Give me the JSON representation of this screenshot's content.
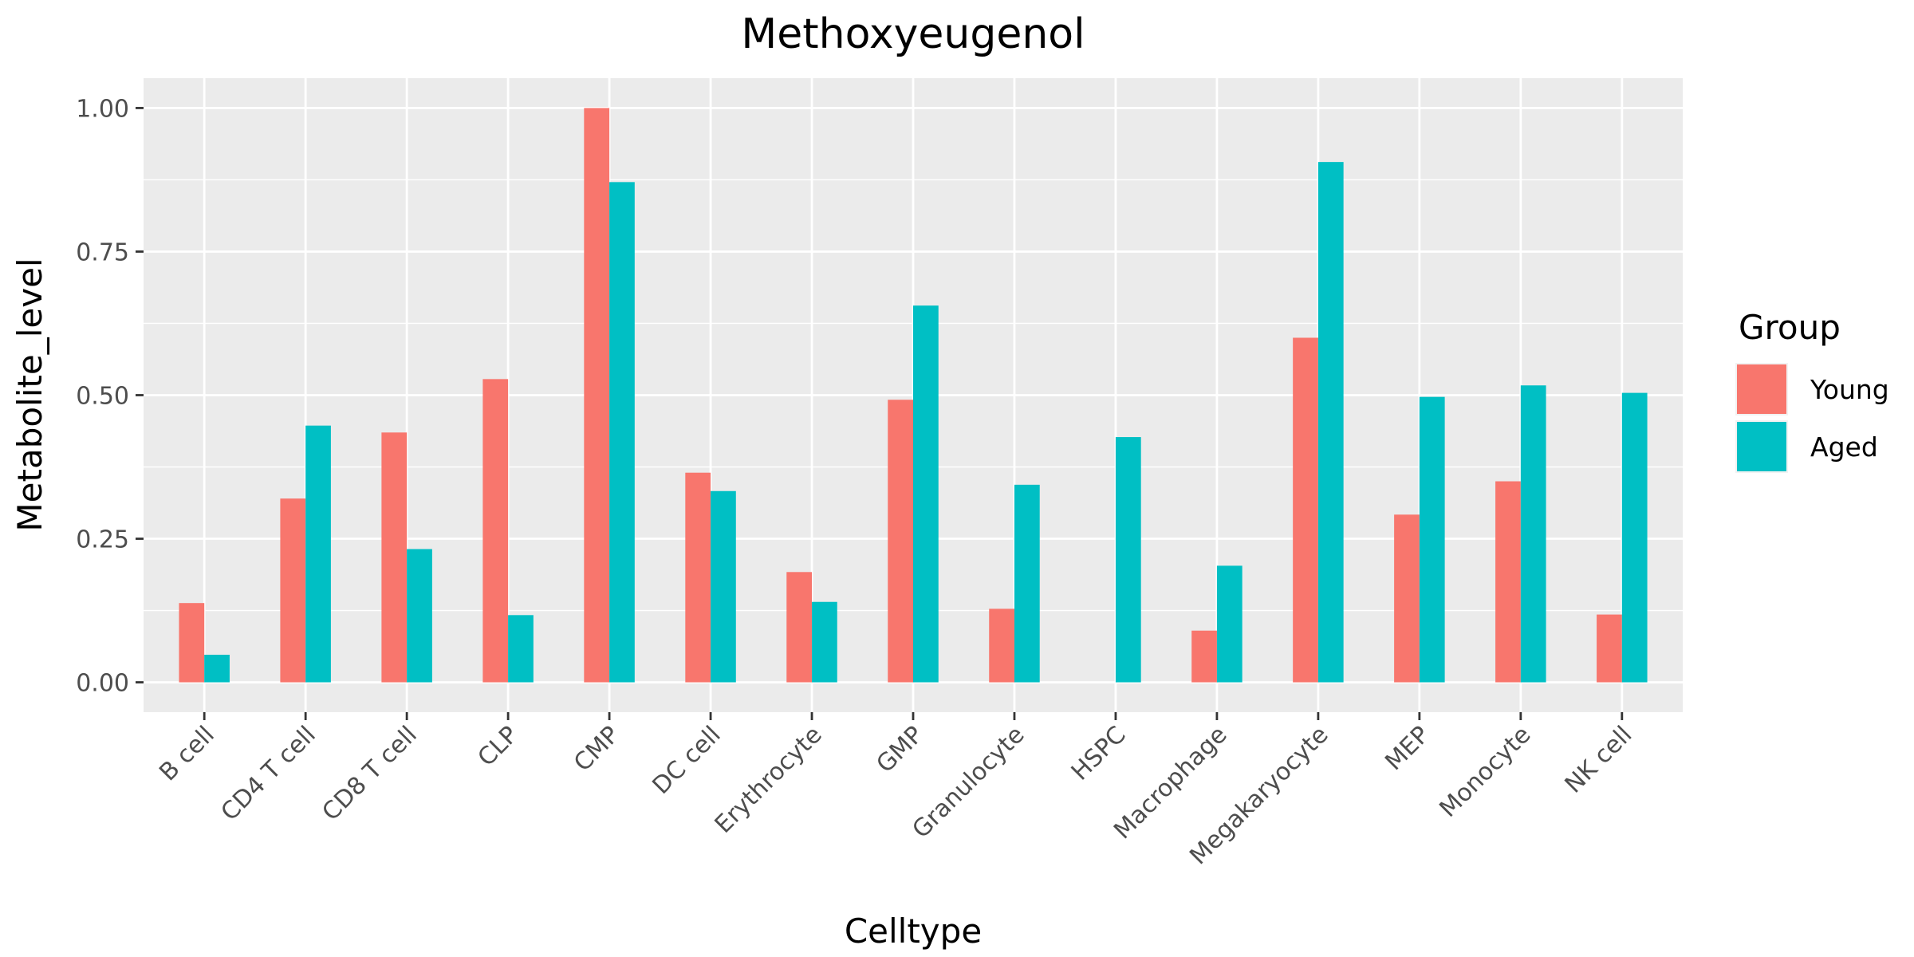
{
  "chart_data": {
    "type": "bar",
    "title": "Methoxyeugenol",
    "xlabel": "Celltype",
    "ylabel": "Metabolite_level",
    "categories": [
      "B cell",
      "CD4 T cell",
      "CD8 T cell",
      "CLP",
      "CMP",
      "DC cell",
      "Erythrocyte",
      "GMP",
      "Granulocyte",
      "HSPC",
      "Macrophage",
      "Megakaryocyte",
      "MEP",
      "Monocyte",
      "NK cell"
    ],
    "series": [
      {
        "name": "Young",
        "color": "#F8766D",
        "values": [
          0.138,
          0.32,
          0.435,
          0.528,
          1.0,
          0.365,
          0.192,
          0.492,
          0.128,
          0.0,
          0.09,
          0.6,
          0.292,
          0.35,
          0.118
        ]
      },
      {
        "name": "Aged",
        "color": "#00BFC4",
        "values": [
          0.048,
          0.447,
          0.232,
          0.117,
          0.871,
          0.333,
          0.14,
          0.656,
          0.344,
          0.427,
          0.203,
          0.906,
          0.497,
          0.517,
          0.504
        ]
      }
    ],
    "ylim": [
      -0.052,
      1.052
    ],
    "yticks": [
      0.0,
      0.25,
      0.5,
      0.75,
      1.0
    ],
    "ytick_labels": [
      "0.00",
      "0.25",
      "0.50",
      "0.75",
      "1.00"
    ],
    "legend": {
      "title": "Group",
      "position": "right"
    },
    "grid": true,
    "panel_color": "#EBEBEB",
    "grid_color": "#FFFFFF"
  }
}
